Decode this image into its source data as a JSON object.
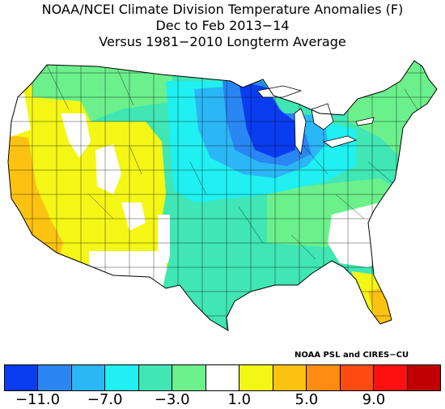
{
  "title": {
    "line1": "NOAA/NCEI Climate Division Temperature Anomalies (F)",
    "line2": "Dec to Feb 2013−14",
    "line3": "Versus 1981−2010 Longterm Average"
  },
  "credit": "NOAA PSL and CIRES−CU",
  "colorbar": {
    "colors": [
      "#0a3cf0",
      "#2a86f2",
      "#2bb6f5",
      "#20f0f2",
      "#40e6b4",
      "#6cf08c",
      "#ffffff",
      "#f4f616",
      "#fcc212",
      "#ff8c10",
      "#ff4b10",
      "#ff1010",
      "#c00000"
    ],
    "tick_labels": [
      "−11.0",
      "−7.0",
      "−3.0",
      "1.0",
      "5.0",
      "9.0"
    ]
  },
  "chart_data": {
    "type": "map",
    "title": "NOAA/NCEI Climate Division Temperature Anomalies (F)",
    "subtitle": "Dec to Feb 2013−14 Versus 1981−2010 Longterm Average",
    "units": "F",
    "legend_breaks": [
      -13,
      -11,
      -9,
      -7,
      -5,
      -3,
      -1,
      1,
      3,
      5,
      7,
      9,
      11,
      13
    ],
    "regions": [
      {
        "name": "West coast / California",
        "anomaly_class": "3 to 5"
      },
      {
        "name": "Great Basin / Southwest",
        "anomaly_class": "1 to 3"
      },
      {
        "name": "Northern Rockies / Northern Plains",
        "anomaly_class": "-3 to -1"
      },
      {
        "name": "Upper Midwest / Great Lakes",
        "anomaly_class": "-11 to -7"
      },
      {
        "name": "Central Plains / Ohio Valley",
        "anomaly_class": "-7 to -3"
      },
      {
        "name": "Northeast / Mid-Atlantic",
        "anomaly_class": "-3 to -1"
      },
      {
        "name": "Southeast",
        "anomaly_class": "-1 to 1"
      },
      {
        "name": "Florida peninsula",
        "anomaly_class": "1 to 5"
      }
    ]
  }
}
